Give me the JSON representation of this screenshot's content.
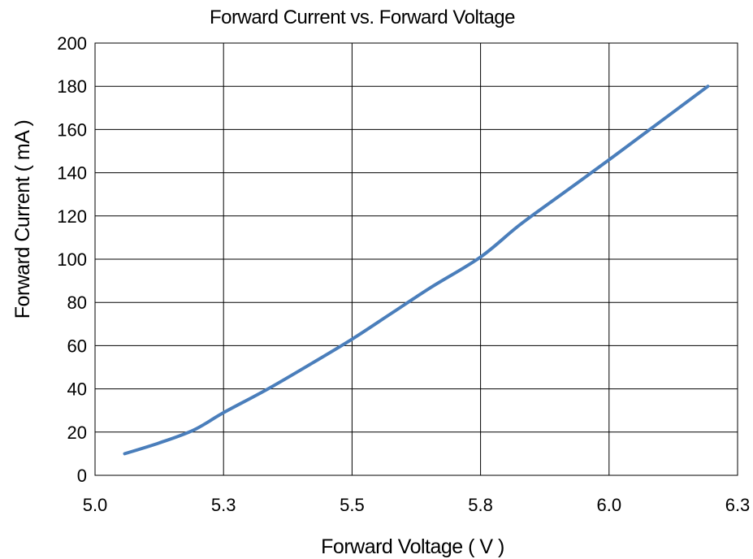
{
  "chart_data": {
    "type": "line",
    "title": "Forward Current vs. Forward Voltage",
    "xlabel": "Forward Voltage ( V )",
    "ylabel": "Forward Current ( mA )",
    "xlim": [
      5.0,
      6.3
    ],
    "ylim": [
      0,
      200
    ],
    "x_ticks": [
      {
        "value": 5.0,
        "label": "5.0"
      },
      {
        "value": 5.26,
        "label": "5.3"
      },
      {
        "value": 5.52,
        "label": "5.5"
      },
      {
        "value": 5.78,
        "label": "5.8"
      },
      {
        "value": 6.04,
        "label": "6.0"
      },
      {
        "value": 6.3,
        "label": "6.3"
      }
    ],
    "y_ticks": [
      0,
      20,
      40,
      60,
      80,
      100,
      120,
      140,
      160,
      180,
      200
    ],
    "grid": {
      "horizontal": true,
      "vertical": true
    },
    "legend": "none",
    "series": [
      {
        "color": "#4a7ebb",
        "x": [
          5.06,
          5.13,
          5.2,
          5.26,
          5.35,
          5.44,
          5.52,
          5.6,
          5.68,
          5.78,
          5.86,
          5.95,
          6.04,
          6.14,
          6.24
        ],
        "y": [
          10,
          15,
          21,
          29,
          40,
          52,
          63,
          75,
          87,
          101,
          116,
          131,
          146,
          163,
          180
        ]
      }
    ]
  }
}
